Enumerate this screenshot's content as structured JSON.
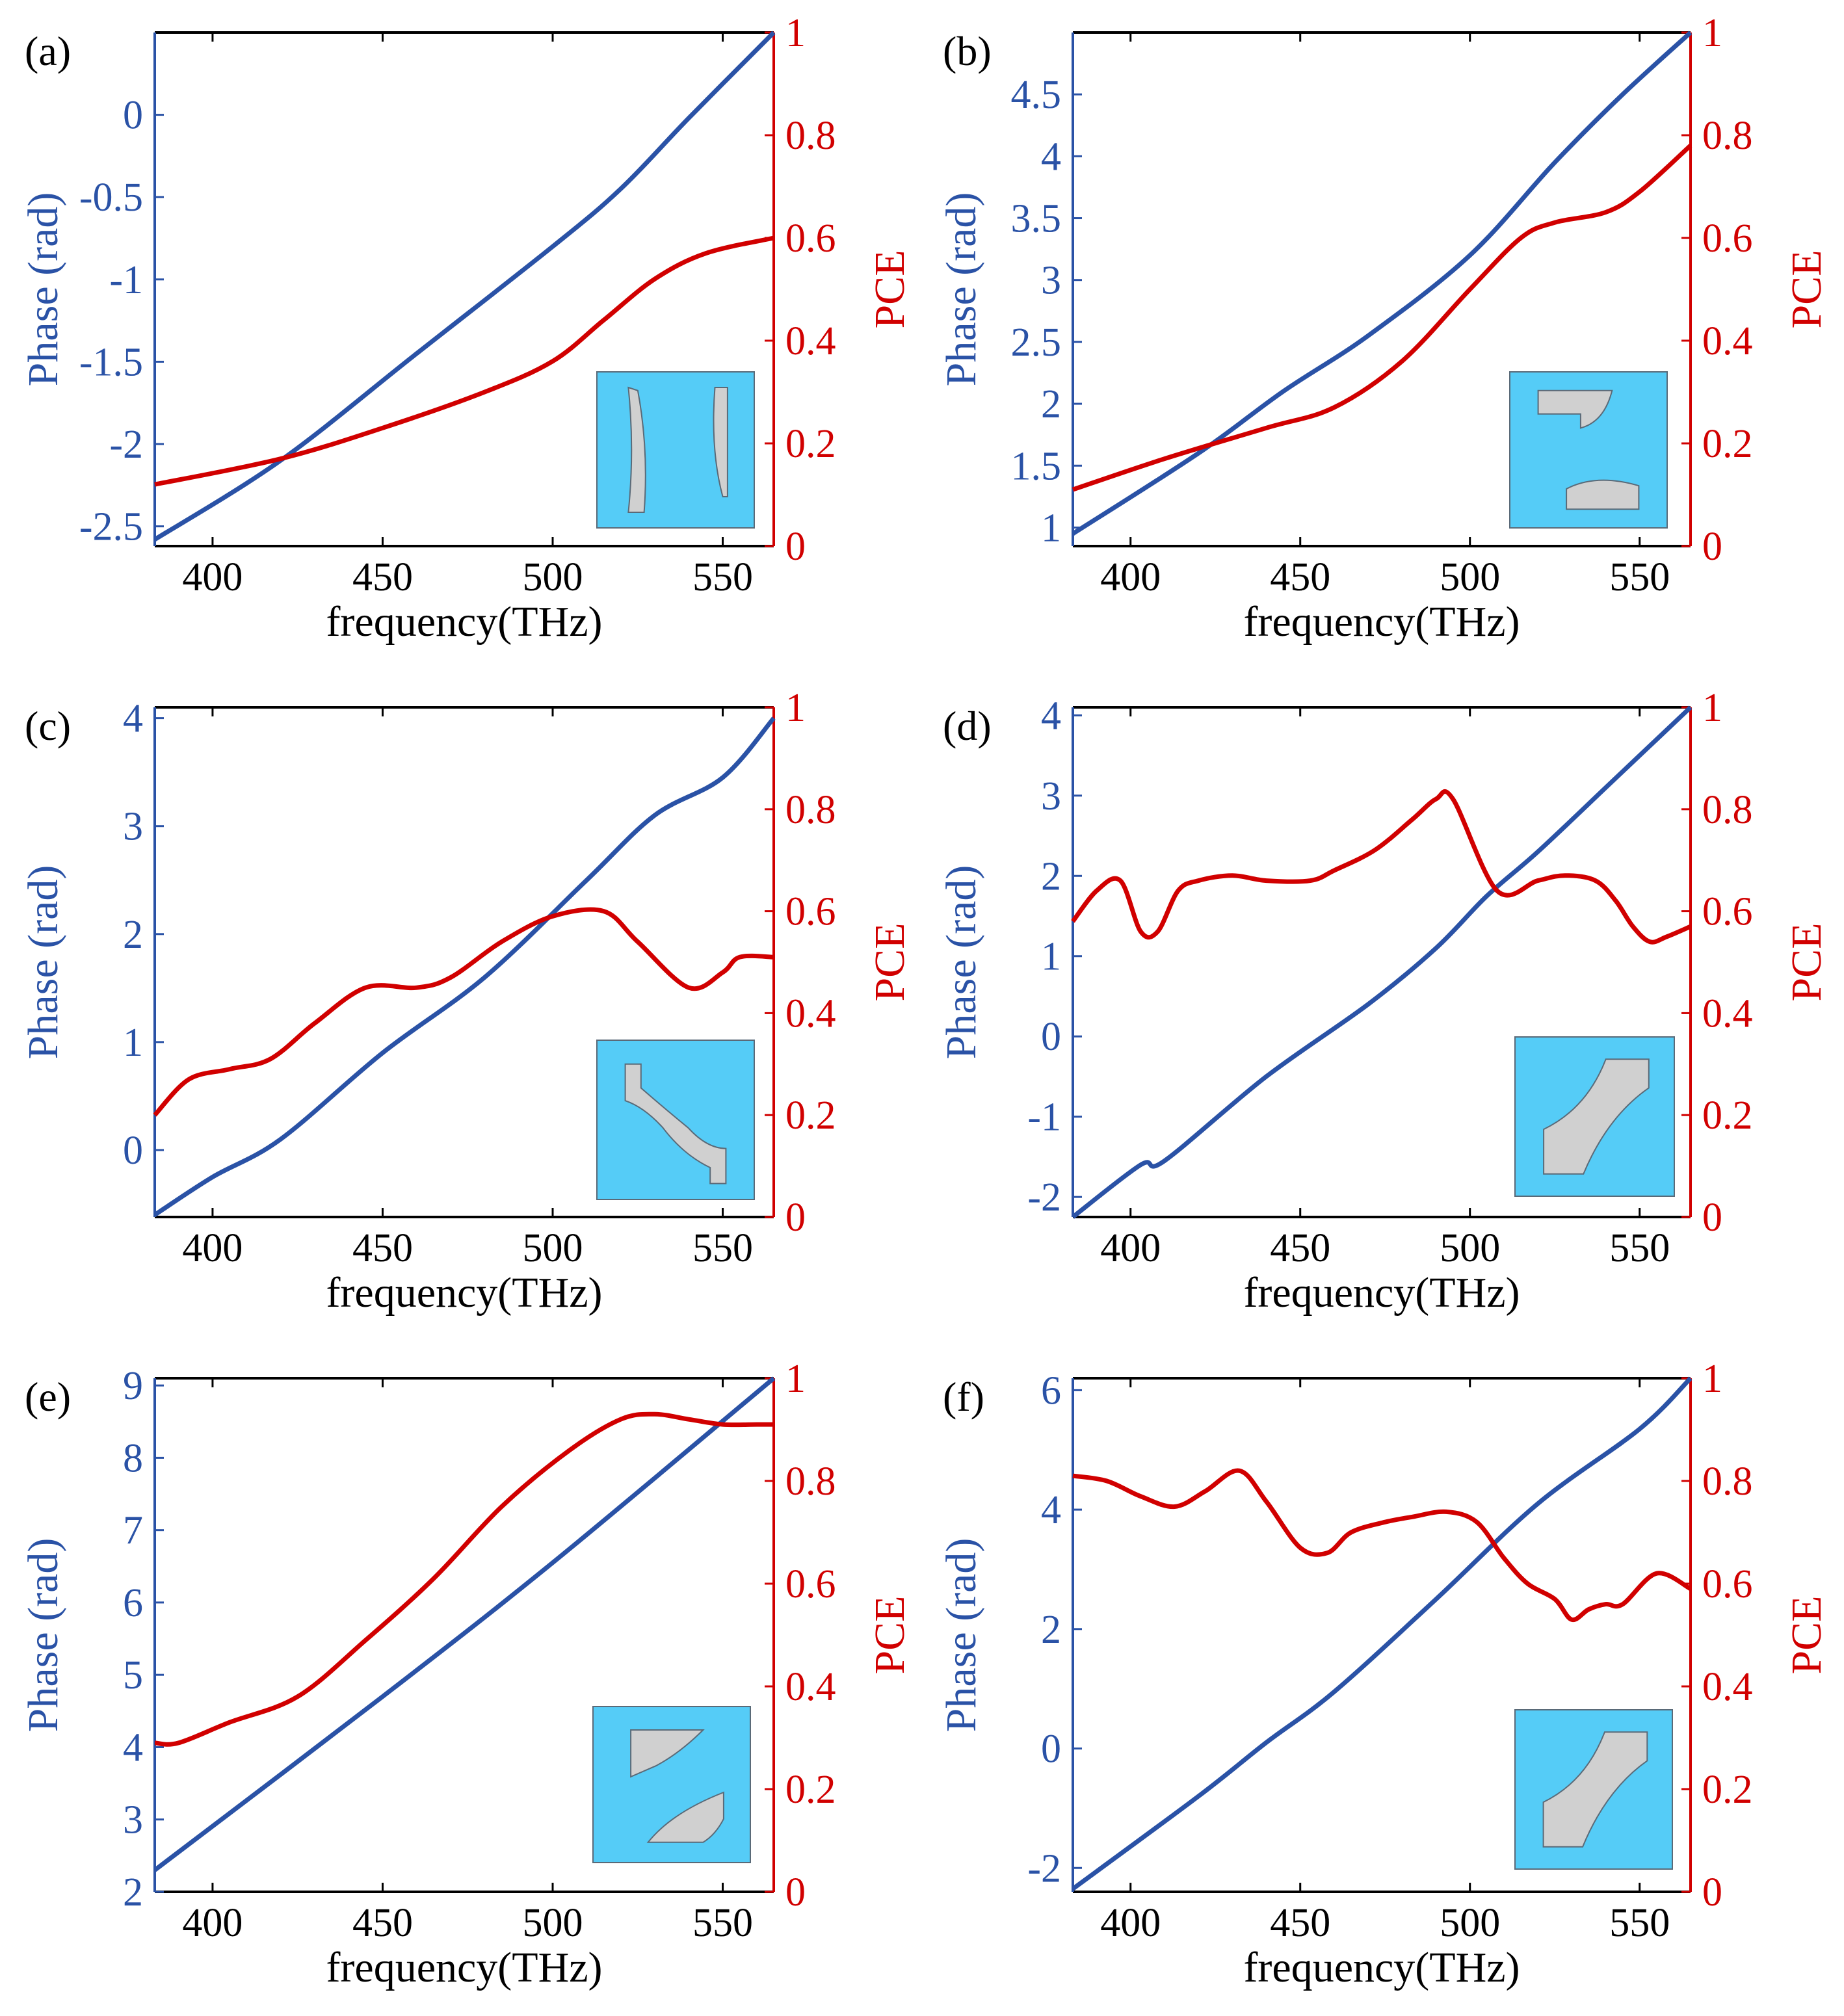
{
  "colors": {
    "phase": "#2a52a6",
    "pce": "#d10000",
    "axis": "#000000",
    "inset_bg": "#55ccf7",
    "inset_shape": "#d0d0d0",
    "inset_border": "#5a6a78"
  },
  "chart_data": [
    {
      "type": "line",
      "panel_label": "(a)",
      "xlabel": "frequency(THz)",
      "ylabel_left": "Phase (rad)",
      "ylabel_right": "PCE",
      "xlim": [
        383,
        565
      ],
      "xticks": [
        "400",
        "450",
        "500",
        "550"
      ],
      "ylim_left": [
        -2.62,
        0.5
      ],
      "yticks_left": [
        "0",
        "-0.5",
        "-1",
        "-1.5",
        "-2",
        "-2.5"
      ],
      "ylim_right": [
        0,
        1
      ],
      "yticks_right": [
        "0",
        "0.2",
        "0.4",
        "0.6",
        "0.8",
        "1"
      ],
      "inset": "two-arcs",
      "series": [
        {
          "name": "Phase",
          "axis": "left",
          "x": [
            383,
            420,
            460,
            500,
            520,
            540,
            565
          ],
          "y": [
            -2.58,
            -2.1,
            -1.45,
            -0.8,
            -0.45,
            -0.02,
            0.5
          ]
        },
        {
          "name": "PCE",
          "axis": "right",
          "x": [
            383,
            420,
            450,
            480,
            500,
            515,
            530,
            545,
            565
          ],
          "y": [
            0.12,
            0.17,
            0.23,
            0.3,
            0.36,
            0.44,
            0.52,
            0.57,
            0.6
          ]
        }
      ]
    },
    {
      "type": "line",
      "panel_label": "(b)",
      "xlabel": "frequency(THz)",
      "ylabel_left": "Phase (rad)",
      "ylabel_right": "PCE",
      "xlim": [
        383,
        565
      ],
      "xticks": [
        "400",
        "450",
        "500",
        "550"
      ],
      "ylim_left": [
        0.85,
        5
      ],
      "yticks_left": [
        "1",
        "1.5",
        "2",
        "2.5",
        "3",
        "3.5",
        "4",
        "4.5"
      ],
      "ylim_right": [
        0,
        1
      ],
      "yticks_right": [
        "0",
        "0.2",
        "0.4",
        "0.6",
        "0.8",
        "1"
      ],
      "inset": "two-rounded-bars",
      "series": [
        {
          "name": "Phase",
          "axis": "left",
          "x": [
            383,
            420,
            445,
            470,
            500,
            525,
            545,
            565
          ],
          "y": [
            0.95,
            1.6,
            2.1,
            2.55,
            3.2,
            3.95,
            4.5,
            5.0
          ]
        },
        {
          "name": "PCE",
          "axis": "right",
          "x": [
            383,
            410,
            440,
            460,
            480,
            500,
            515,
            525,
            540,
            550,
            565
          ],
          "y": [
            0.11,
            0.17,
            0.23,
            0.27,
            0.36,
            0.5,
            0.6,
            0.63,
            0.65,
            0.69,
            0.78
          ]
        }
      ]
    },
    {
      "type": "line",
      "panel_label": "(c)",
      "xlabel": "frequency(THz)",
      "ylabel_left": "Phase (rad)",
      "ylabel_right": "PCE",
      "xlim": [
        383,
        565
      ],
      "xticks": [
        "400",
        "450",
        "500",
        "550"
      ],
      "ylim_left": [
        -0.62,
        4.1
      ],
      "yticks_left": [
        "0",
        "1",
        "2",
        "3",
        "4"
      ],
      "ylim_right": [
        0,
        1
      ],
      "yticks_right": [
        "0",
        "0.2",
        "0.4",
        "0.6",
        "0.8",
        "1"
      ],
      "inset": "s-curve",
      "series": [
        {
          "name": "Phase",
          "axis": "left",
          "x": [
            383,
            400,
            420,
            450,
            480,
            510,
            530,
            550,
            565
          ],
          "y": [
            -0.6,
            -0.25,
            0.1,
            0.9,
            1.6,
            2.5,
            3.1,
            3.45,
            4.0
          ]
        },
        {
          "name": "PCE",
          "axis": "right",
          "x": [
            383,
            393,
            405,
            417,
            430,
            445,
            460,
            470,
            485,
            500,
            515,
            525,
            540,
            550,
            555,
            565
          ],
          "y": [
            0.2,
            0.27,
            0.29,
            0.31,
            0.38,
            0.45,
            0.45,
            0.47,
            0.54,
            0.59,
            0.6,
            0.54,
            0.45,
            0.48,
            0.51,
            0.51
          ]
        }
      ]
    },
    {
      "type": "line",
      "panel_label": "(d)",
      "xlabel": "frequency(THz)",
      "ylabel_left": "Phase (rad)",
      "ylabel_right": "PCE",
      "xlim": [
        383,
        565
      ],
      "xticks": [
        "400",
        "450",
        "500",
        "550"
      ],
      "ylim_left": [
        -2.25,
        4.1
      ],
      "yticks_left": [
        "-2",
        "-1",
        "0",
        "1",
        "2",
        "3",
        "4"
      ],
      "ylim_right": [
        0,
        1
      ],
      "yticks_right": [
        "0",
        "0.2",
        "0.4",
        "0.6",
        "0.8",
        "1"
      ],
      "inset": "curved-band",
      "series": [
        {
          "name": "Phase",
          "axis": "left",
          "x": [
            383,
            403,
            410,
            440,
            470,
            490,
            505,
            520,
            540,
            555,
            565
          ],
          "y": [
            -2.25,
            -1.6,
            -1.55,
            -0.5,
            0.4,
            1.1,
            1.75,
            2.3,
            3.1,
            3.7,
            4.1
          ]
        },
        {
          "name": "PCE",
          "axis": "right",
          "x": [
            383,
            390,
            397,
            403,
            408,
            414,
            420,
            430,
            440,
            453,
            460,
            472,
            483,
            490,
            495,
            508,
            520,
            528,
            537,
            543,
            548,
            553,
            558,
            565
          ],
          "y": [
            0.58,
            0.64,
            0.66,
            0.56,
            0.56,
            0.64,
            0.66,
            0.67,
            0.66,
            0.66,
            0.68,
            0.72,
            0.78,
            0.82,
            0.82,
            0.64,
            0.66,
            0.67,
            0.66,
            0.62,
            0.57,
            0.54,
            0.55,
            0.57
          ]
        }
      ]
    },
    {
      "type": "line",
      "panel_label": "(e)",
      "xlabel": "frequency(THz)",
      "ylabel_left": "Phase (rad)",
      "ylabel_right": "PCE",
      "xlim": [
        383,
        565
      ],
      "xticks": [
        "400",
        "450",
        "500",
        "550"
      ],
      "ylim_left": [
        2,
        9.1
      ],
      "yticks_left": [
        "2",
        "3",
        "4",
        "5",
        "6",
        "7",
        "8",
        "9"
      ],
      "ylim_right": [
        0,
        1
      ],
      "yticks_right": [
        "0",
        "0.2",
        "0.4",
        "0.6",
        "0.8",
        "1"
      ],
      "inset": "two-diagonal-pieces",
      "series": [
        {
          "name": "Phase",
          "axis": "left",
          "x": [
            383,
            450,
            500,
            565
          ],
          "y": [
            2.3,
            4.7,
            6.55,
            9.1
          ]
        },
        {
          "name": "PCE",
          "axis": "right",
          "x": [
            383,
            390,
            405,
            425,
            445,
            465,
            485,
            505,
            520,
            530,
            540,
            550,
            560,
            565
          ],
          "y": [
            0.29,
            0.29,
            0.33,
            0.38,
            0.49,
            0.61,
            0.75,
            0.86,
            0.92,
            0.93,
            0.92,
            0.91,
            0.91,
            0.91
          ]
        }
      ]
    },
    {
      "type": "line",
      "panel_label": "(f)",
      "xlabel": "frequency(THz)",
      "ylabel_left": "Phase (rad)",
      "ylabel_right": "PCE",
      "xlim": [
        383,
        565
      ],
      "xticks": [
        "400",
        "450",
        "500",
        "550"
      ],
      "ylim_left": [
        -2.4,
        6.2
      ],
      "yticks_left": [
        "-2",
        "0",
        "2",
        "4",
        "6"
      ],
      "ylim_right": [
        0,
        1
      ],
      "yticks_right": [
        "0",
        "0.2",
        "0.4",
        "0.6",
        "0.8",
        "1"
      ],
      "inset": "curved-band",
      "series": [
        {
          "name": "Phase",
          "axis": "left",
          "x": [
            383,
            420,
            440,
            460,
            490,
            520,
            550,
            565
          ],
          "y": [
            -2.35,
            -0.8,
            0.1,
            0.95,
            2.5,
            4.1,
            5.35,
            6.2
          ]
        },
        {
          "name": "PCE",
          "axis": "right",
          "x": [
            383,
            393,
            403,
            413,
            422,
            432,
            440,
            450,
            458,
            465,
            475,
            483,
            493,
            502,
            510,
            517,
            525,
            530,
            535,
            540,
            545,
            555,
            565
          ],
          "y": [
            0.81,
            0.8,
            0.77,
            0.75,
            0.78,
            0.82,
            0.76,
            0.67,
            0.66,
            0.7,
            0.72,
            0.73,
            0.74,
            0.72,
            0.65,
            0.6,
            0.57,
            0.53,
            0.55,
            0.56,
            0.56,
            0.62,
            0.59
          ]
        }
      ]
    }
  ]
}
